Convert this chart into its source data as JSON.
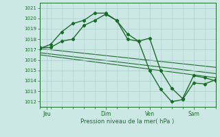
{
  "background_color": "#cce8e4",
  "grid_color": "#aaccca",
  "line_color": "#1a6b2a",
  "title": "Pression niveau de la mer( hPa )",
  "ylabel_ticks": [
    1012,
    1013,
    1014,
    1015,
    1016,
    1017,
    1018,
    1019,
    1020,
    1021
  ],
  "ylim": [
    1011.5,
    1021.5
  ],
  "xlim": [
    0,
    96
  ],
  "xtick_positions": [
    4,
    36,
    60,
    84
  ],
  "xtick_labels": [
    "Jeu",
    "Dim",
    "Ven",
    "Sam"
  ],
  "line1_x": [
    0,
    6,
    12,
    18,
    24,
    30,
    36,
    42,
    48,
    54,
    60,
    66,
    72,
    78,
    84,
    90,
    96
  ],
  "line1_y": [
    1017.1,
    1017.5,
    1018.7,
    1019.5,
    1019.8,
    1020.5,
    1020.5,
    1019.8,
    1018.5,
    1017.8,
    1015.0,
    1013.2,
    1012.0,
    1012.2,
    1013.8,
    1013.7,
    1014.1
  ],
  "line2_x": [
    0,
    6,
    12,
    18,
    24,
    30,
    36,
    42,
    48,
    54,
    60,
    66,
    72,
    78,
    84,
    90,
    96
  ],
  "line2_y": [
    1017.2,
    1017.2,
    1017.8,
    1018.0,
    1019.3,
    1019.8,
    1020.4,
    1019.8,
    1018.0,
    1017.8,
    1018.1,
    1015.0,
    1013.3,
    1012.3,
    1014.5,
    1014.3,
    1014.0
  ],
  "line3_x": [
    0,
    96
  ],
  "line3_y": [
    1017.1,
    1015.3
  ],
  "line4_x": [
    0,
    96
  ],
  "line4_y": [
    1016.7,
    1014.7
  ],
  "line5_x": [
    0,
    96
  ],
  "line5_y": [
    1016.5,
    1014.3
  ]
}
